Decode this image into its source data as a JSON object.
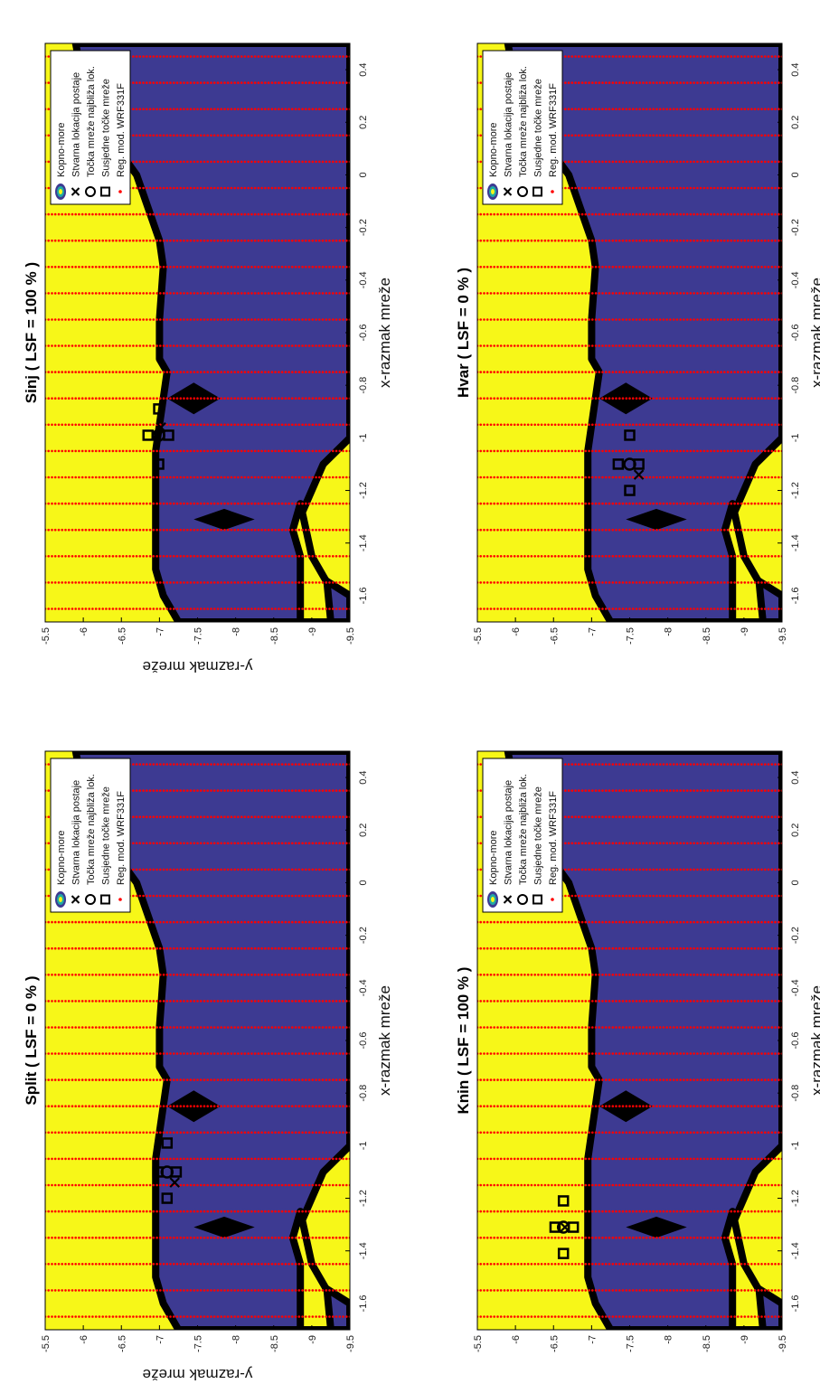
{
  "figure": {
    "orientation": "rotated 90 degrees counter-clockwise",
    "layout": "2x2 panels",
    "colors": {
      "land": "#f7f718",
      "sea": "#3d3a92",
      "coast": "#000000",
      "grid_points": "#ff0000",
      "markers": "#000000",
      "background": "#ffffff"
    }
  },
  "legend": {
    "items": [
      {
        "symbol": "land-sea-contour-icon",
        "label": "Kopno-more"
      },
      {
        "symbol": "x-marker",
        "label": "Stvarna lokacija postaje"
      },
      {
        "symbol": "circle-marker",
        "label": "Točka mreže najbliža lok."
      },
      {
        "symbol": "square-marker",
        "label": "Susjedne točke mreže"
      },
      {
        "symbol": "red-dot-marker",
        "label": "Reg. mod. WRF331F"
      }
    ]
  },
  "chart_data": [
    {
      "type": "scatter",
      "title": "Knin ( LSF = 100 % )",
      "xlabel": "x-razmak mreže",
      "ylabel": "",
      "xlim": [
        -1.7,
        0.5
      ],
      "ylim": [
        -9.5,
        -5.5
      ],
      "xticks": [
        "-1.6",
        "-1.4",
        "-1.2",
        "-1",
        "-0.8",
        "-0.6",
        "-0.4",
        "-0.2",
        "0",
        "0.2",
        "0.4"
      ],
      "yticks": [
        "-5.5",
        "-6",
        "-6.5",
        "-7",
        "-7.5",
        "-8",
        "-8.5",
        "-9",
        "-9.5"
      ],
      "grid_x": [
        -1.65,
        -1.55,
        -1.45,
        -1.35,
        -1.25,
        -1.15,
        -1.05,
        -0.95,
        -0.85,
        -0.75,
        -0.65,
        -0.55,
        -0.45,
        -0.35,
        -0.25,
        -0.15,
        -0.05,
        0.05,
        0.15,
        0.25,
        0.35,
        0.45
      ],
      "station": [
        -1.31,
        -6.65
      ],
      "nearest": [
        -1.31,
        -6.63
      ],
      "neighbors": [
        [
          -1.41,
          -6.63
        ],
        [
          -1.31,
          -6.52
        ],
        [
          -1.31,
          -6.76
        ],
        [
          -1.21,
          -6.63
        ]
      ]
    },
    {
      "type": "scatter",
      "title": "Split ( LSF = 0 % )",
      "xlabel": "x-razmak mreže",
      "ylabel": "y-razmak mreže",
      "xlim": [
        -1.7,
        0.5
      ],
      "ylim": [
        -9.5,
        -5.5
      ],
      "xticks": [
        "-1.6",
        "-1.4",
        "-1.2",
        "-1",
        "-0.8",
        "-0.6",
        "-0.4",
        "-0.2",
        "0",
        "0.2",
        "0.4"
      ],
      "yticks": [
        "-5.5",
        "-6",
        "-6.5",
        "-7",
        "-7.5",
        "-8",
        "-8.5",
        "-9",
        "-9.5"
      ],
      "grid_x": [
        -1.65,
        -1.55,
        -1.45,
        -1.35,
        -1.25,
        -1.15,
        -1.05,
        -0.95,
        -0.85,
        -0.75,
        -0.65,
        -0.55,
        -0.45,
        -0.35,
        -0.25,
        -0.15,
        -0.05,
        0.05,
        0.15,
        0.25,
        0.35,
        0.45
      ],
      "station": [
        -1.14,
        -7.2
      ],
      "nearest": [
        -1.1,
        -7.1
      ],
      "neighbors": [
        [
          -1.2,
          -7.1
        ],
        [
          -1.1,
          -6.98
        ],
        [
          -1.1,
          -7.22
        ],
        [
          -0.99,
          -7.1
        ]
      ]
    },
    {
      "type": "scatter",
      "title": "Hvar ( LSF = 0 % )",
      "xlabel": "x-razmak mreže",
      "ylabel": "",
      "xlim": [
        -1.7,
        0.5
      ],
      "ylim": [
        -9.5,
        -5.5
      ],
      "xticks": [
        "-1.6",
        "-1.4",
        "-1.2",
        "-1",
        "-0.8",
        "-0.6",
        "-0.4",
        "-0.2",
        "0",
        "0.2",
        "0.4"
      ],
      "yticks": [
        "-5.5",
        "-6",
        "-6.5",
        "-7",
        "-7.5",
        "-8",
        "-8.5",
        "-9",
        "-9.5"
      ],
      "grid_x": [
        -1.65,
        -1.55,
        -1.45,
        -1.35,
        -1.25,
        -1.15,
        -1.05,
        -0.95,
        -0.85,
        -0.75,
        -0.65,
        -0.55,
        -0.45,
        -0.35,
        -0.25,
        -0.15,
        -0.05,
        0.05,
        0.15,
        0.25,
        0.35,
        0.45
      ],
      "station": [
        -1.14,
        -7.62
      ],
      "nearest": [
        -1.1,
        -7.5
      ],
      "neighbors": [
        [
          -1.2,
          -7.5
        ],
        [
          -1.1,
          -7.35
        ],
        [
          -1.1,
          -7.62
        ],
        [
          -0.99,
          -7.5
        ]
      ]
    },
    {
      "type": "scatter",
      "title": "Sinj ( LSF = 100 % )",
      "xlabel": "x-razmak mreže",
      "ylabel": "y-razmak mreže",
      "xlim": [
        -1.7,
        0.5
      ],
      "ylim": [
        -9.5,
        -5.5
      ],
      "xticks": [
        "-1.6",
        "-1.4",
        "-1.2",
        "-1",
        "-0.8",
        "-0.6",
        "-0.4",
        "-0.2",
        "0",
        "0.2",
        "0.4"
      ],
      "yticks": [
        "-5.5",
        "-6",
        "-6.5",
        "-7",
        "-7.5",
        "-8",
        "-8.5",
        "-9",
        "-9.5"
      ],
      "grid_x": [
        -1.65,
        -1.55,
        -1.45,
        -1.35,
        -1.25,
        -1.15,
        -1.05,
        -0.95,
        -0.85,
        -0.75,
        -0.65,
        -0.55,
        -0.45,
        -0.35,
        -0.25,
        -0.15,
        -0.05,
        0.05,
        0.15,
        0.25,
        0.35,
        0.45
      ],
      "station": [
        -0.96,
        -7.02
      ],
      "nearest": [
        -0.99,
        -6.99
      ],
      "neighbors": [
        [
          -1.1,
          -6.99
        ],
        [
          -0.99,
          -6.85
        ],
        [
          -0.99,
          -7.12
        ],
        [
          -0.89,
          -6.99
        ]
      ]
    }
  ]
}
